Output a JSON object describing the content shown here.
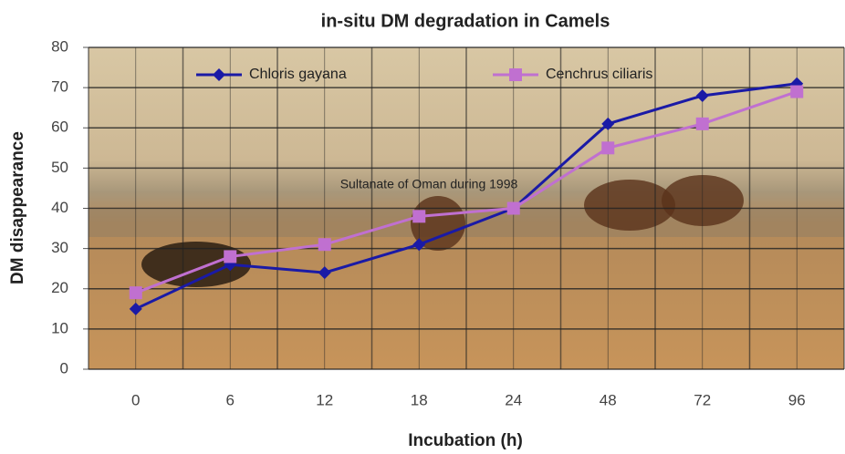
{
  "chart_data": {
    "type": "line",
    "title": "in-situ DM degradation in Camels",
    "annotation": "Sultanate of Oman during 1998",
    "x_label": "Incubation (h)",
    "y_label": "DM disappearance",
    "categories": [
      "0",
      "6",
      "12",
      "18",
      "24",
      "48",
      "72",
      "96"
    ],
    "series": [
      {
        "name": "Chloris gayana",
        "color": "#1a1aa6",
        "marker": "diamond",
        "values": [
          15,
          26,
          24,
          31,
          40,
          61,
          68,
          71
        ]
      },
      {
        "name": "Cenchrus ciliaris",
        "color": "#c070d0",
        "marker": "square",
        "values": [
          19,
          28,
          31,
          38,
          40,
          55,
          61,
          69
        ]
      }
    ],
    "ylim": [
      0,
      80
    ],
    "yticks": [
      0,
      10,
      20,
      30,
      40,
      50,
      60,
      70,
      80
    ],
    "grid": true
  }
}
